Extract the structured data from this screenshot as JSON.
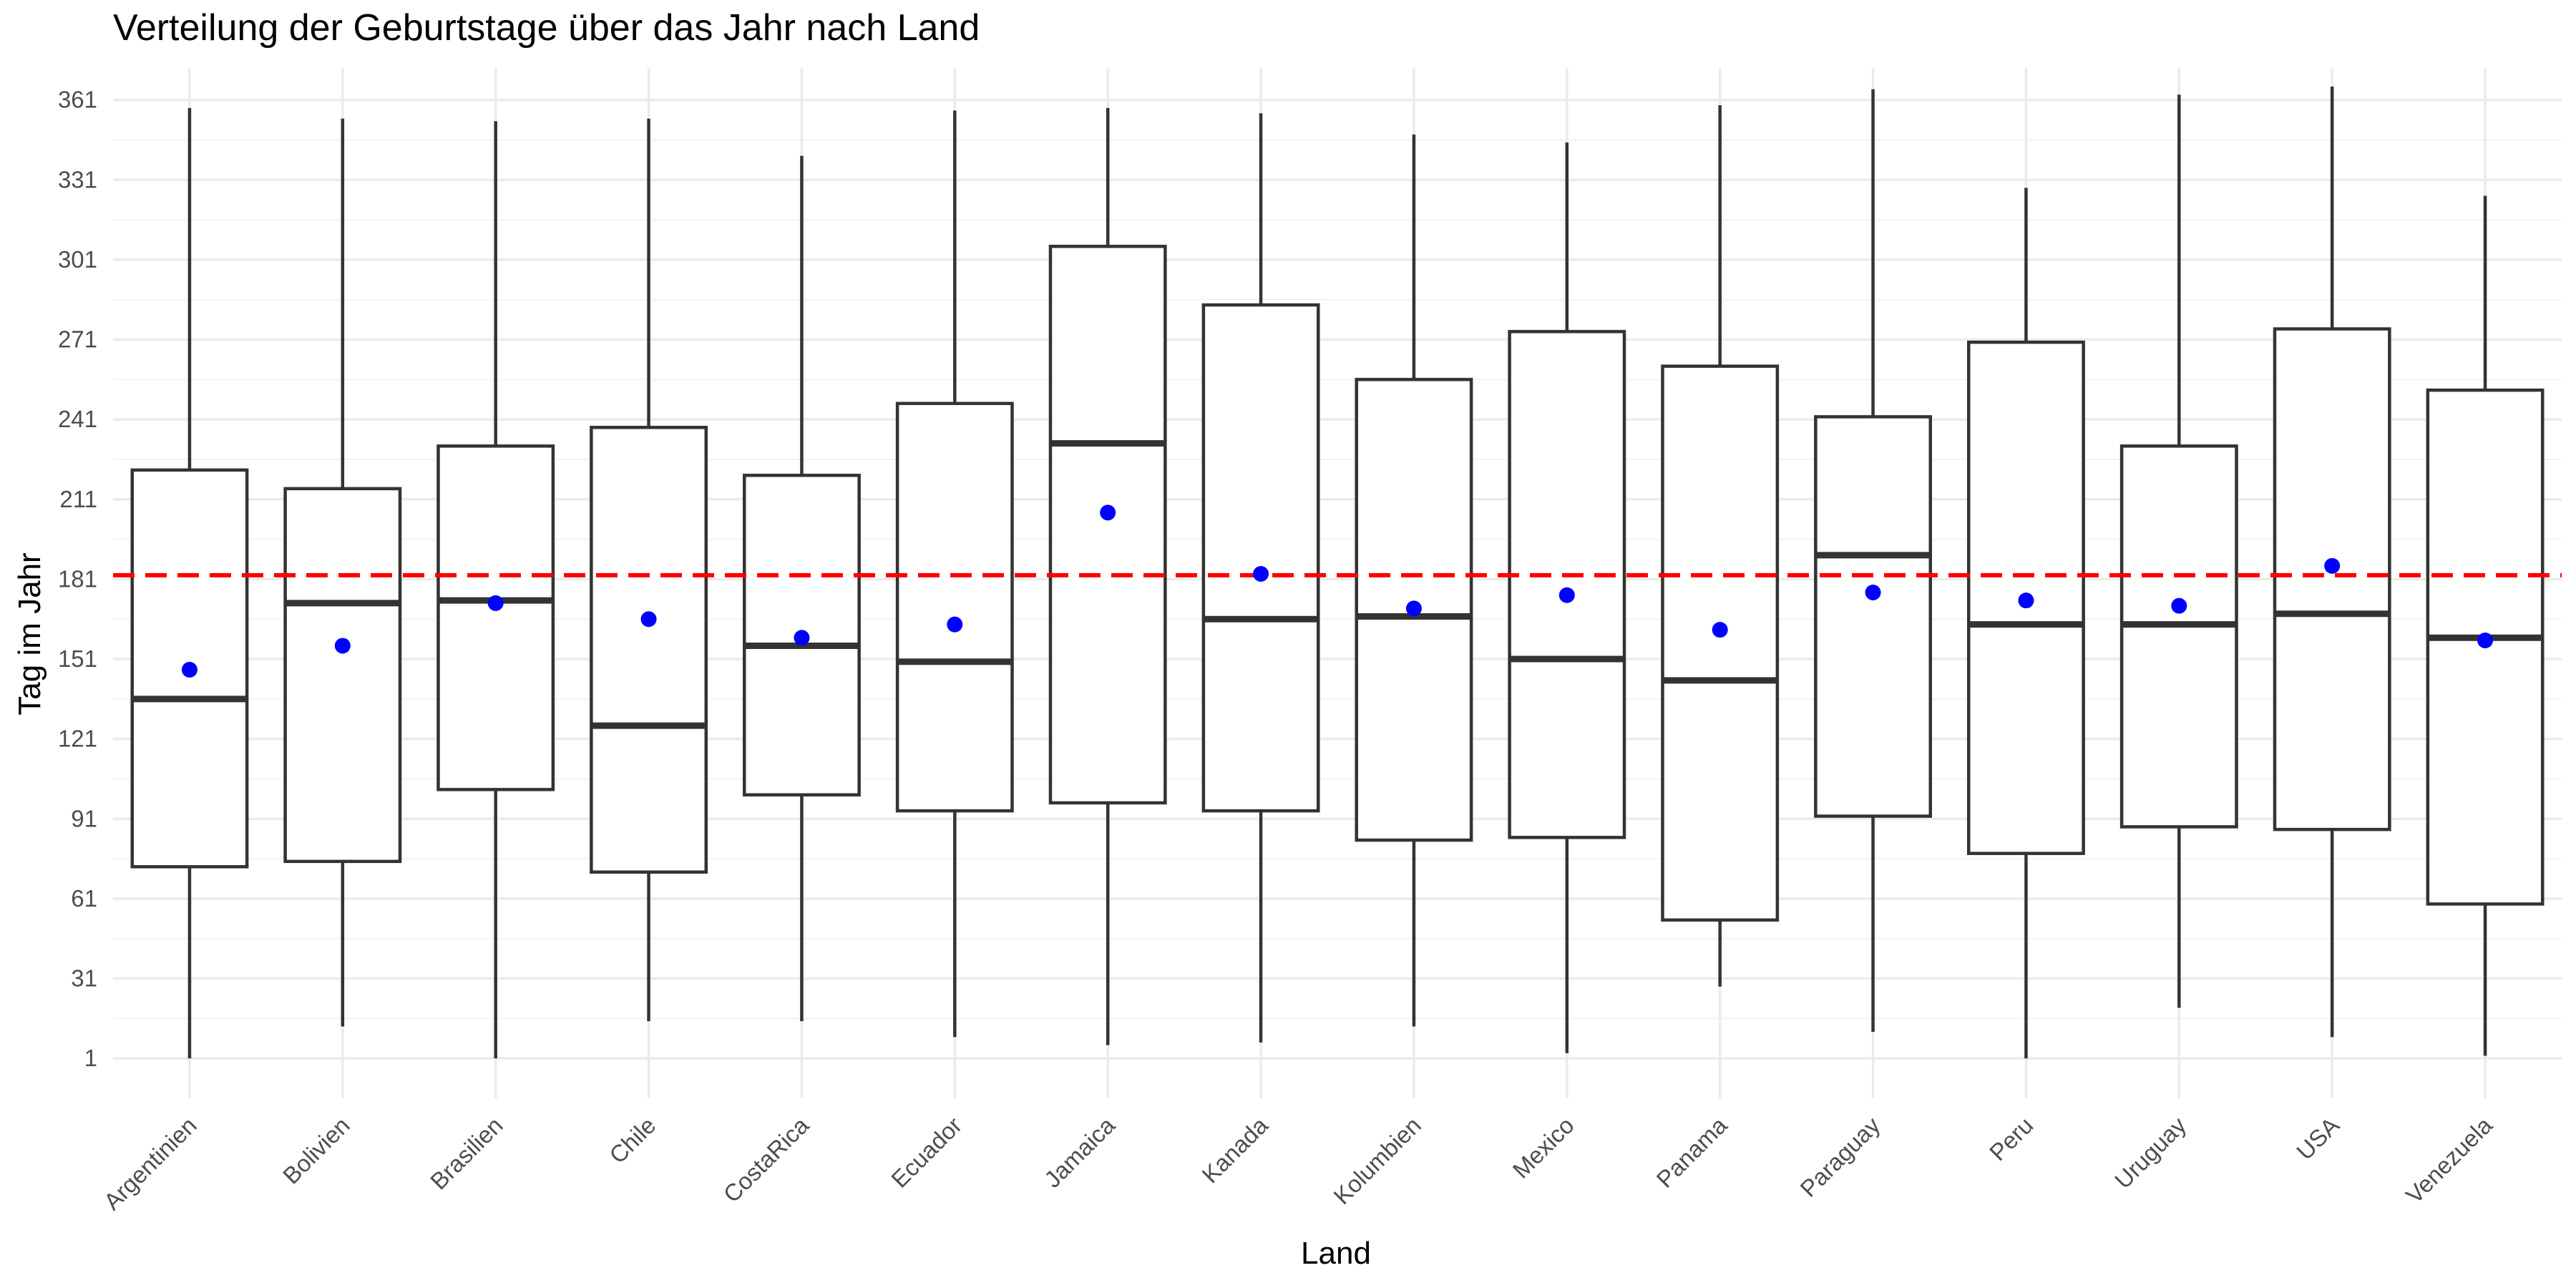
{
  "chart_data": {
    "type": "boxplot",
    "title": "Verteilung der Geburtstage über das Jahr nach Land",
    "xlabel": "Land",
    "ylabel": "Tag im Jahr",
    "ylim": [
      -14,
      373
    ],
    "yticks": [
      1,
      31,
      61,
      91,
      121,
      151,
      181,
      211,
      241,
      271,
      301,
      331,
      361
    ],
    "grid": true,
    "reference_line": {
      "y": 182.5,
      "color": "#ff0000",
      "style": "dashed"
    },
    "colors": {
      "box_stroke": "#333333",
      "mean_point": "#0000ff",
      "reference_line": "#ff0000",
      "grid": "#ebebeb"
    },
    "categories": [
      "Argentinien",
      "Bolivien",
      "Brasilien",
      "Chile",
      "CostaRica",
      "Ecuador",
      "Jamaica",
      "Kanada",
      "Kolumbien",
      "Mexico",
      "Panama",
      "Paraguay",
      "Peru",
      "Uruguay",
      "USA",
      "Venezuela"
    ],
    "boxes": [
      {
        "category": "Argentinien",
        "min": 1,
        "q1": 73,
        "median": 136,
        "q3": 222,
        "max": 358,
        "mean": 147
      },
      {
        "category": "Bolivien",
        "min": 13,
        "q1": 75,
        "median": 172,
        "q3": 215,
        "max": 354,
        "mean": 156
      },
      {
        "category": "Brasilien",
        "min": 1,
        "q1": 102,
        "median": 173,
        "q3": 231,
        "max": 353,
        "mean": 172
      },
      {
        "category": "Chile",
        "min": 15,
        "q1": 71,
        "median": 126,
        "q3": 238,
        "max": 354,
        "mean": 166
      },
      {
        "category": "CostaRica",
        "min": 15,
        "q1": 100,
        "median": 156,
        "q3": 220,
        "max": 340,
        "mean": 159
      },
      {
        "category": "Ecuador",
        "min": 9,
        "q1": 94,
        "median": 150,
        "q3": 247,
        "max": 357,
        "mean": 164
      },
      {
        "category": "Jamaica",
        "min": 6,
        "q1": 97,
        "median": 232,
        "q3": 306,
        "max": 358,
        "mean": 206
      },
      {
        "category": "Kanada",
        "min": 7,
        "q1": 94,
        "median": 166,
        "q3": 284,
        "max": 356,
        "mean": 183
      },
      {
        "category": "Kolumbien",
        "min": 13,
        "q1": 83,
        "median": 167,
        "q3": 256,
        "max": 348,
        "mean": 170
      },
      {
        "category": "Mexico",
        "min": 3,
        "q1": 84,
        "median": 151,
        "q3": 274,
        "max": 345,
        "mean": 175
      },
      {
        "category": "Panama",
        "min": 28,
        "q1": 53,
        "median": 143,
        "q3": 261,
        "max": 359,
        "mean": 162
      },
      {
        "category": "Paraguay",
        "min": 11,
        "q1": 92,
        "median": 190,
        "q3": 242,
        "max": 365,
        "mean": 176
      },
      {
        "category": "Peru",
        "min": 1,
        "q1": 78,
        "median": 164,
        "q3": 270,
        "max": 328,
        "mean": 173
      },
      {
        "category": "Uruguay",
        "min": 20,
        "q1": 88,
        "median": 164,
        "q3": 231,
        "max": 363,
        "mean": 171
      },
      {
        "category": "USA",
        "min": 9,
        "q1": 87,
        "median": 168,
        "q3": 275,
        "max": 366,
        "mean": 186
      },
      {
        "category": "Venezuela",
        "min": 2,
        "q1": 59,
        "median": 159,
        "q3": 252,
        "max": 325,
        "mean": 158
      }
    ]
  }
}
